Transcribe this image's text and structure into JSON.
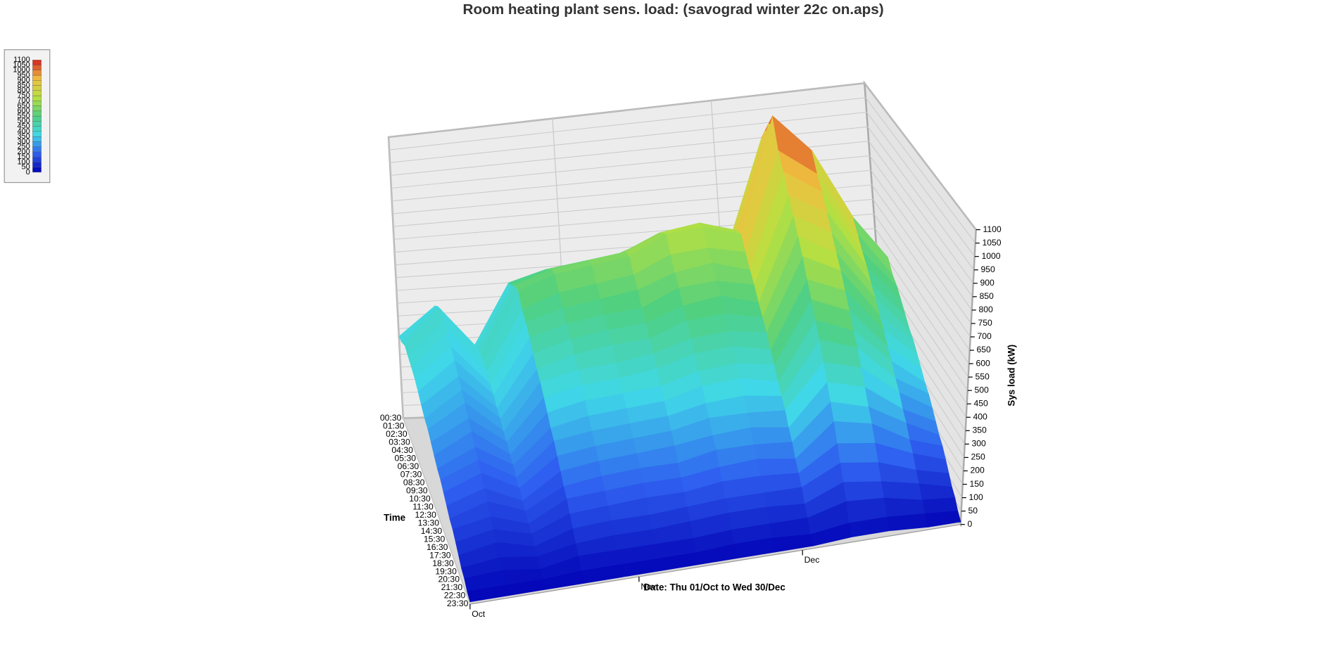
{
  "chart_data": {
    "type": "surface3d",
    "title": "Room heating plant sens. load:  (savograd winter 22c on.aps)",
    "x_label": "Date: Thu 01/Oct to Wed 30/Dec",
    "y_label": "Time",
    "z_label": "Sys load (kW)",
    "xlim": [
      0,
      90
    ],
    "xticks": [
      {
        "value": 0,
        "label": "Oct"
      },
      {
        "value": 31,
        "label": "Nov"
      },
      {
        "value": 61,
        "label": "Dec"
      }
    ],
    "x": [
      0,
      7,
      14,
      21,
      28,
      35,
      42,
      49,
      56,
      63,
      70,
      77,
      84,
      90
    ],
    "y": [
      "00:30",
      "01:30",
      "02:30",
      "03:30",
      "04:30",
      "05:30",
      "06:30",
      "07:30",
      "08:30",
      "09:30",
      "10:30",
      "11:30",
      "12:30",
      "13:30",
      "14:30",
      "15:30",
      "16:30",
      "17:30",
      "18:30",
      "19:30",
      "20:30",
      "21:30",
      "22:30",
      "23:30"
    ],
    "zlim": [
      0,
      1100
    ],
    "zticks": [
      0,
      50,
      100,
      150,
      200,
      250,
      300,
      350,
      400,
      450,
      500,
      550,
      600,
      650,
      700,
      750,
      800,
      850,
      900,
      950,
      1000,
      1050,
      1100
    ],
    "colorscale": [
      "#0000b4",
      "#2f5ff0",
      "#40d8e8",
      "#50d080",
      "#b8e040",
      "#f0c040",
      "#d42020"
    ],
    "z": [
      [
        320,
        430,
        270,
        500,
        540,
        560,
        580,
        630,
        650,
        610,
        950,
        860,
        630,
        500
      ],
      [
        330,
        460,
        290,
        520,
        570,
        590,
        610,
        670,
        680,
        650,
        1000,
        900,
        670,
        520
      ],
      [
        350,
        480,
        300,
        550,
        600,
        620,
        640,
        700,
        720,
        680,
        1050,
        950,
        700,
        550
      ],
      [
        340,
        470,
        300,
        560,
        610,
        630,
        650,
        720,
        730,
        690,
        1100,
        960,
        710,
        560
      ],
      [
        330,
        460,
        290,
        520,
        570,
        590,
        610,
        670,
        680,
        650,
        1000,
        900,
        670,
        520
      ],
      [
        320,
        430,
        270,
        500,
        540,
        560,
        580,
        630,
        650,
        610,
        950,
        860,
        630,
        500
      ],
      [
        300,
        410,
        260,
        470,
        510,
        530,
        540,
        600,
        610,
        580,
        890,
        810,
        600,
        470
      ],
      [
        280,
        380,
        240,
        440,
        480,
        500,
        510,
        560,
        580,
        540,
        840,
        760,
        560,
        440
      ],
      [
        260,
        360,
        230,
        410,
        450,
        470,
        480,
        530,
        540,
        510,
        790,
        710,
        530,
        410
      ],
      [
        250,
        340,
        210,
        390,
        420,
        430,
        450,
        490,
        500,
        480,
        740,
        670,
        490,
        390
      ],
      [
        230,
        310,
        200,
        360,
        390,
        400,
        420,
        460,
        470,
        440,
        680,
        620,
        460,
        360
      ],
      [
        210,
        290,
        180,
        330,
        360,
        370,
        380,
        420,
        430,
        410,
        630,
        570,
        420,
        330
      ],
      [
        190,
        260,
        170,
        300,
        330,
        340,
        350,
        390,
        400,
        370,
        580,
        520,
        390,
        300
      ],
      [
        180,
        240,
        150,
        280,
        300,
        310,
        320,
        350,
        360,
        340,
        530,
        480,
        350,
        280
      ],
      [
        160,
        220,
        140,
        250,
        270,
        280,
        290,
        320,
        320,
        310,
        470,
        430,
        320,
        250
      ],
      [
        140,
        190,
        120,
        220,
        240,
        250,
        260,
        280,
        290,
        270,
        420,
        380,
        280,
        220
      ],
      [
        120,
        170,
        110,
        190,
        210,
        220,
        220,
        250,
        250,
        240,
        370,
        330,
        250,
        190
      ],
      [
        110,
        140,
        90,
        170,
        180,
        190,
        190,
        210,
        220,
        200,
        320,
        290,
        210,
        170
      ],
      [
        90,
        120,
        80,
        140,
        150,
        160,
        160,
        180,
        180,
        170,
        260,
        240,
        180,
        140
      ],
      [
        70,
        100,
        60,
        110,
        120,
        120,
        130,
        140,
        140,
        140,
        210,
        190,
        140,
        110
      ],
      [
        50,
        70,
        50,
        80,
        90,
        90,
        100,
        110,
        110,
        100,
        160,
        140,
        110,
        80
      ],
      [
        40,
        50,
        30,
        60,
        60,
        60,
        60,
        70,
        70,
        70,
        110,
        100,
        70,
        60
      ],
      [
        20,
        20,
        20,
        30,
        30,
        30,
        30,
        40,
        40,
        30,
        50,
        50,
        40,
        30
      ],
      [
        10,
        10,
        10,
        10,
        10,
        10,
        10,
        10,
        10,
        10,
        20,
        20,
        10,
        10
      ]
    ]
  }
}
